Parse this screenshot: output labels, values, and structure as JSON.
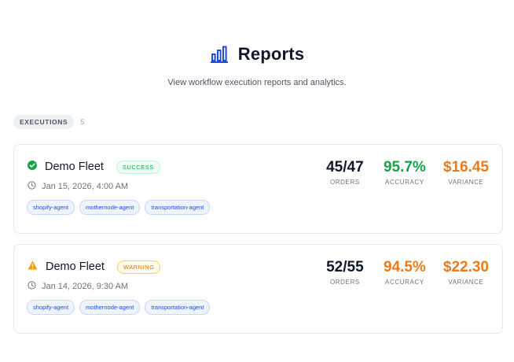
{
  "page": {
    "title": "Reports",
    "subtitle": "View workflow execution reports and analytics.",
    "title_icon": "bar-chart-icon"
  },
  "section": {
    "label": "EXECUTIONS",
    "count": "5"
  },
  "executions": [
    {
      "name": "Demo Fleet",
      "status": "SUCCESS",
      "status_icon": "check-circle-icon",
      "date": "Jan 15, 2026, 4:00 AM",
      "tags": [
        "shopify-agent",
        "mothernode-agent",
        "transportation-agent"
      ],
      "orders": "45/47",
      "orders_label": "ORDERS",
      "accuracy": "95.7%",
      "accuracy_label": "ACCURACY",
      "variance": "$16.45",
      "variance_label": "VARIANCE"
    },
    {
      "name": "Demo Fleet",
      "status": "WARNING",
      "status_icon": "warning-triangle-icon",
      "date": "Jan 14, 2026, 9:30 AM",
      "tags": [
        "shopify-agent",
        "mothernode-agent",
        "transportation-agent"
      ],
      "orders": "52/55",
      "orders_label": "ORDERS",
      "accuracy": "94.5%",
      "accuracy_label": "ACCURACY",
      "variance": "$22.30",
      "variance_label": "VARIANCE"
    }
  ],
  "colors": {
    "accent": "#1d4ed8",
    "success": "#16a34a",
    "warning": "#f59e0b",
    "variance": "#ea7a1c",
    "accuracy_warning": "#ea7a1c"
  }
}
